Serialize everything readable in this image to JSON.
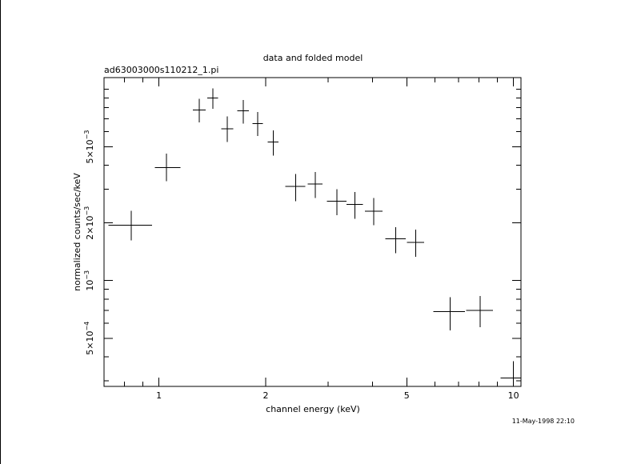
{
  "chart_data": {
    "type": "scatter",
    "title": "data and folded model",
    "subtitle": "ad63003000s110212_1.pi",
    "xlabel": "channel energy (keV)",
    "ylabel": "normalized counts/sec/keV",
    "timestamp": "11-May-1998 22:10",
    "x_scale": "log",
    "y_scale": "log",
    "xlim": [
      0.7,
      10.5
    ],
    "ylim": [
      0.00028,
      0.0115
    ],
    "x_tick_labels": [
      {
        "value": 1,
        "label": "1"
      },
      {
        "value": 2,
        "label": "2"
      },
      {
        "value": 5,
        "label": "5"
      },
      {
        "value": 10,
        "label": "10"
      }
    ],
    "y_tick_labels": [
      {
        "value": 0.0005,
        "mant": "5×10",
        "exp": "−4"
      },
      {
        "value": 0.001,
        "mant": "10",
        "exp": "−3"
      },
      {
        "value": 0.002,
        "mant": "2×10",
        "exp": "−3"
      },
      {
        "value": 0.005,
        "mant": "5×10",
        "exp": "−3"
      }
    ],
    "grid": false,
    "points": [
      {
        "x": 0.835,
        "xlo": 0.72,
        "xhi": 0.955,
        "y": 0.00195,
        "ylo": 0.00162,
        "yhi": 0.00232
      },
      {
        "x": 1.05,
        "xlo": 0.975,
        "xhi": 1.15,
        "y": 0.0039,
        "ylo": 0.0033,
        "yhi": 0.0046
      },
      {
        "x": 1.3,
        "xlo": 1.245,
        "xhi": 1.355,
        "y": 0.0078,
        "ylo": 0.0067,
        "yhi": 0.0089
      },
      {
        "x": 1.42,
        "xlo": 1.37,
        "xhi": 1.47,
        "y": 0.009,
        "ylo": 0.0079,
        "yhi": 0.0101
      },
      {
        "x": 1.56,
        "xlo": 1.5,
        "xhi": 1.62,
        "y": 0.0062,
        "ylo": 0.0053,
        "yhi": 0.0072
      },
      {
        "x": 1.73,
        "xlo": 1.665,
        "xhi": 1.795,
        "y": 0.0077,
        "ylo": 0.0066,
        "yhi": 0.0088
      },
      {
        "x": 1.9,
        "xlo": 1.835,
        "xhi": 1.965,
        "y": 0.0066,
        "ylo": 0.0057,
        "yhi": 0.0076
      },
      {
        "x": 2.1,
        "xlo": 2.025,
        "xhi": 2.175,
        "y": 0.0053,
        "ylo": 0.0045,
        "yhi": 0.0061
      },
      {
        "x": 2.43,
        "xlo": 2.27,
        "xhi": 2.59,
        "y": 0.0031,
        "ylo": 0.0026,
        "yhi": 0.0036
      },
      {
        "x": 2.76,
        "xlo": 2.63,
        "xhi": 2.89,
        "y": 0.0032,
        "ylo": 0.0027,
        "yhi": 0.0037
      },
      {
        "x": 3.18,
        "xlo": 2.98,
        "xhi": 3.38,
        "y": 0.0026,
        "ylo": 0.0022,
        "yhi": 0.003
      },
      {
        "x": 3.57,
        "xlo": 3.38,
        "xhi": 3.76,
        "y": 0.0025,
        "ylo": 0.0021,
        "yhi": 0.0029
      },
      {
        "x": 4.04,
        "xlo": 3.81,
        "xhi": 4.27,
        "y": 0.0023,
        "ylo": 0.00195,
        "yhi": 0.0027
      },
      {
        "x": 4.66,
        "xlo": 4.35,
        "xhi": 4.97,
        "y": 0.00165,
        "ylo": 0.00139,
        "yhi": 0.0019
      },
      {
        "x": 5.3,
        "xlo": 5.0,
        "xhi": 5.6,
        "y": 0.00158,
        "ylo": 0.00133,
        "yhi": 0.00185
      },
      {
        "x": 6.62,
        "xlo": 5.95,
        "xhi": 7.3,
        "y": 0.00069,
        "ylo": 0.00055,
        "yhi": 0.00082
      },
      {
        "x": 8.05,
        "xlo": 7.35,
        "xhi": 8.75,
        "y": 0.0007,
        "ylo": 0.00057,
        "yhi": 0.00083
      },
      {
        "x": 10.0,
        "xlo": 9.2,
        "xhi": 10.5,
        "y": 0.00031,
        "ylo": 0.00025,
        "yhi": 0.00038
      }
    ]
  }
}
